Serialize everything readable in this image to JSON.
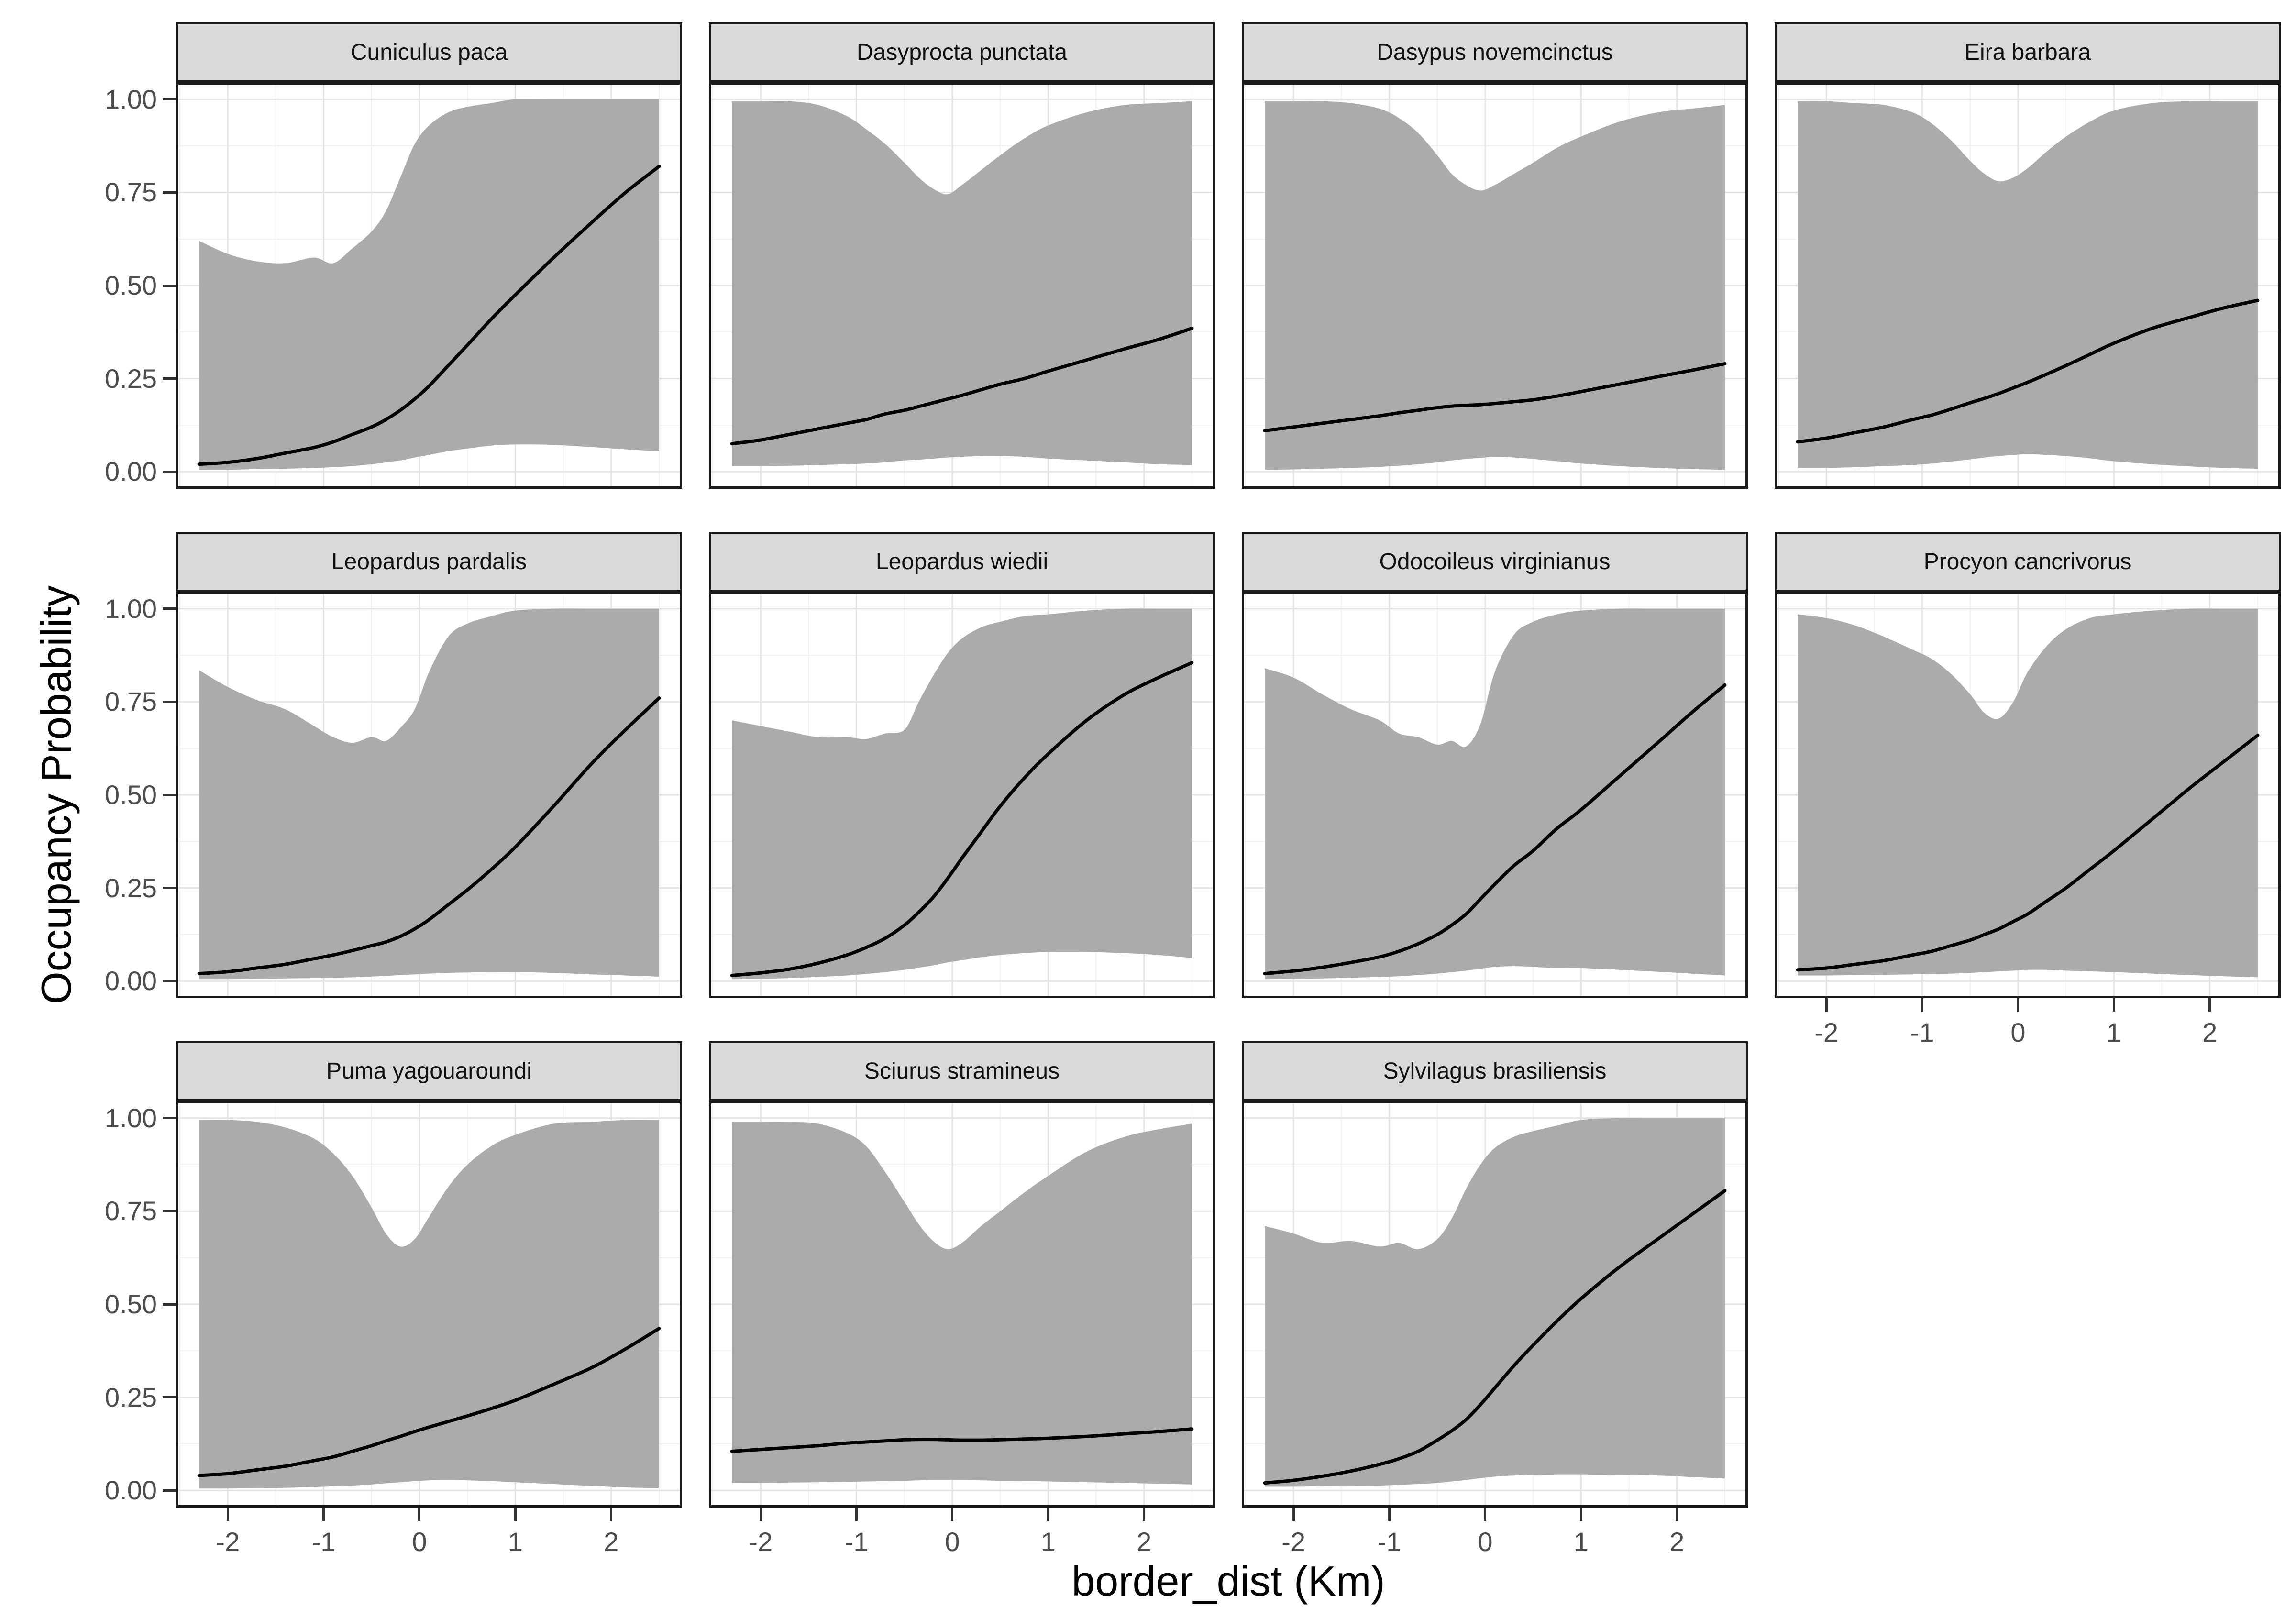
{
  "figure_type": "faceted ribbon + line plot (species occupancy curves)",
  "colors": {
    "ribbon": "#ABABAB",
    "mean_line": "#000000",
    "strip_fill": "#D9D9D9",
    "strip_border": "#1A1A1A",
    "panel_border": "#1A1A1A",
    "grid_major": "#E4E4E4",
    "grid_minor": "#F1F1F1",
    "tick_text": "#4D4D4D",
    "tick_mark": "#333333",
    "background": "#FFFFFF"
  },
  "chart_data": {
    "type": "area",
    "title": "",
    "xlabel": "border_dist (Km)",
    "ylabel": "Occupancy Probability",
    "legend": "none",
    "grid": "major and minor, light gray on white",
    "ncol": 4,
    "x_domain": [
      -2.54,
      2.74
    ],
    "y_domain": [
      -0.046,
      1.046
    ],
    "x_ticks": [
      -2,
      -1,
      0,
      1,
      2
    ],
    "x_tick_labels": [
      "-2",
      "-1",
      "0",
      "1",
      "2"
    ],
    "x_minor_ticks": [
      -2.5,
      -1.5,
      -0.5,
      0.5,
      1.5,
      2.5
    ],
    "y_ticks": [
      0,
      0.25,
      0.5,
      0.75,
      1
    ],
    "y_tick_labels": [
      "0.00",
      "0.25",
      "0.50",
      "0.75",
      "1.00"
    ],
    "y_minor_ticks": [
      0.125,
      0.375,
      0.625,
      0.875
    ],
    "x": [
      -2.3,
      -2,
      -1.7,
      -1.4,
      -1.1,
      -0.9,
      -0.7,
      -0.5,
      -0.35,
      -0.2,
      -0.05,
      0.1,
      0.3,
      0.5,
      0.75,
      1,
      1.4,
      1.8,
      2.15,
      2.5
    ],
    "facets": [
      {
        "title": "Cuniculus paca",
        "mean": [
          0.02,
          0.025,
          0.035,
          0.05,
          0.065,
          0.08,
          0.1,
          0.12,
          0.14,
          0.165,
          0.195,
          0.23,
          0.285,
          0.34,
          0.41,
          0.475,
          0.575,
          0.67,
          0.75,
          0.82
        ],
        "upper": [
          0.62,
          0.585,
          0.565,
          0.56,
          0.575,
          0.56,
          0.6,
          0.645,
          0.7,
          0.79,
          0.88,
          0.93,
          0.965,
          0.98,
          0.99,
          1,
          1,
          1,
          1,
          1
        ],
        "lower": [
          0.005,
          0.005,
          0.007,
          0.008,
          0.01,
          0.012,
          0.015,
          0.02,
          0.025,
          0.03,
          0.038,
          0.045,
          0.055,
          0.062,
          0.07,
          0.073,
          0.072,
          0.066,
          0.06,
          0.055
        ]
      },
      {
        "title": "Dasyprocta punctata",
        "mean": [
          0.075,
          0.085,
          0.1,
          0.115,
          0.13,
          0.14,
          0.155,
          0.165,
          0.175,
          0.185,
          0.195,
          0.205,
          0.22,
          0.235,
          0.25,
          0.27,
          0.3,
          0.33,
          0.355,
          0.385
        ],
        "upper": [
          0.995,
          0.995,
          0.995,
          0.985,
          0.955,
          0.92,
          0.88,
          0.83,
          0.79,
          0.76,
          0.745,
          0.77,
          0.81,
          0.85,
          0.895,
          0.93,
          0.965,
          0.985,
          0.99,
          0.995
        ],
        "lower": [
          0.015,
          0.015,
          0.016,
          0.018,
          0.02,
          0.022,
          0.025,
          0.03,
          0.032,
          0.035,
          0.038,
          0.04,
          0.042,
          0.042,
          0.04,
          0.035,
          0.03,
          0.025,
          0.02,
          0.018
        ]
      },
      {
        "title": "Dasypus novemcinctus",
        "mean": [
          0.11,
          0.12,
          0.13,
          0.14,
          0.15,
          0.158,
          0.165,
          0.172,
          0.176,
          0.178,
          0.18,
          0.183,
          0.188,
          0.193,
          0.203,
          0.215,
          0.235,
          0.255,
          0.272,
          0.29
        ],
        "upper": [
          0.995,
          0.995,
          0.995,
          0.99,
          0.975,
          0.95,
          0.91,
          0.85,
          0.8,
          0.77,
          0.755,
          0.77,
          0.8,
          0.83,
          0.87,
          0.9,
          0.94,
          0.965,
          0.975,
          0.985
        ],
        "lower": [
          0.005,
          0.006,
          0.008,
          0.01,
          0.013,
          0.016,
          0.02,
          0.025,
          0.03,
          0.034,
          0.037,
          0.04,
          0.038,
          0.034,
          0.028,
          0.022,
          0.015,
          0.01,
          0.007,
          0.005
        ]
      },
      {
        "title": "Eira barbara",
        "mean": [
          0.08,
          0.09,
          0.105,
          0.12,
          0.14,
          0.152,
          0.168,
          0.185,
          0.197,
          0.21,
          0.225,
          0.24,
          0.262,
          0.285,
          0.315,
          0.345,
          0.385,
          0.415,
          0.44,
          0.46
        ],
        "upper": [
          0.995,
          0.995,
          0.99,
          0.985,
          0.965,
          0.935,
          0.89,
          0.835,
          0.8,
          0.78,
          0.79,
          0.815,
          0.86,
          0.9,
          0.94,
          0.97,
          0.99,
          0.995,
          0.995,
          0.995
        ],
        "lower": [
          0.01,
          0.01,
          0.012,
          0.015,
          0.018,
          0.022,
          0.027,
          0.033,
          0.038,
          0.042,
          0.045,
          0.047,
          0.045,
          0.042,
          0.036,
          0.028,
          0.02,
          0.014,
          0.01,
          0.008
        ]
      },
      {
        "title": "Leopardus pardalis",
        "mean": [
          0.02,
          0.025,
          0.035,
          0.045,
          0.06,
          0.07,
          0.082,
          0.095,
          0.105,
          0.12,
          0.14,
          0.165,
          0.205,
          0.245,
          0.3,
          0.36,
          0.47,
          0.585,
          0.675,
          0.76
        ],
        "upper": [
          0.835,
          0.79,
          0.755,
          0.73,
          0.685,
          0.655,
          0.64,
          0.655,
          0.645,
          0.68,
          0.73,
          0.83,
          0.925,
          0.96,
          0.98,
          0.995,
          1,
          1,
          1,
          1
        ],
        "lower": [
          0.005,
          0.005,
          0.006,
          0.007,
          0.008,
          0.009,
          0.01,
          0.012,
          0.014,
          0.016,
          0.018,
          0.02,
          0.022,
          0.023,
          0.024,
          0.024,
          0.022,
          0.018,
          0.015,
          0.012
        ]
      },
      {
        "title": "Leopardus wiedii",
        "mean": [
          0.015,
          0.022,
          0.032,
          0.048,
          0.07,
          0.09,
          0.115,
          0.15,
          0.185,
          0.225,
          0.275,
          0.33,
          0.4,
          0.47,
          0.545,
          0.61,
          0.7,
          0.77,
          0.815,
          0.855
        ],
        "upper": [
          0.7,
          0.685,
          0.67,
          0.655,
          0.655,
          0.65,
          0.665,
          0.675,
          0.75,
          0.82,
          0.88,
          0.92,
          0.95,
          0.965,
          0.98,
          0.985,
          0.995,
          1,
          1,
          1
        ],
        "lower": [
          0.005,
          0.006,
          0.008,
          0.011,
          0.015,
          0.019,
          0.024,
          0.03,
          0.036,
          0.042,
          0.05,
          0.056,
          0.064,
          0.07,
          0.075,
          0.078,
          0.078,
          0.075,
          0.07,
          0.062
        ]
      },
      {
        "title": "Odocoileus virginianus",
        "mean": [
          0.02,
          0.027,
          0.037,
          0.05,
          0.065,
          0.08,
          0.1,
          0.125,
          0.15,
          0.18,
          0.22,
          0.26,
          0.31,
          0.35,
          0.41,
          0.46,
          0.55,
          0.64,
          0.72,
          0.795
        ],
        "upper": [
          0.84,
          0.815,
          0.77,
          0.73,
          0.7,
          0.665,
          0.655,
          0.635,
          0.645,
          0.63,
          0.69,
          0.83,
          0.93,
          0.965,
          0.985,
          0.995,
          1,
          1,
          1,
          1
        ],
        "lower": [
          0.005,
          0.006,
          0.007,
          0.009,
          0.011,
          0.013,
          0.016,
          0.02,
          0.024,
          0.028,
          0.033,
          0.038,
          0.04,
          0.038,
          0.035,
          0.035,
          0.03,
          0.025,
          0.02,
          0.015
        ]
      },
      {
        "title": "Procyon cancrivorus",
        "mean": [
          0.03,
          0.035,
          0.045,
          0.055,
          0.07,
          0.08,
          0.095,
          0.11,
          0.125,
          0.14,
          0.16,
          0.18,
          0.215,
          0.25,
          0.3,
          0.35,
          0.435,
          0.52,
          0.59,
          0.66
        ],
        "upper": [
          0.985,
          0.975,
          0.955,
          0.925,
          0.89,
          0.865,
          0.825,
          0.77,
          0.72,
          0.705,
          0.75,
          0.83,
          0.9,
          0.945,
          0.975,
          0.985,
          0.995,
          1,
          1,
          1
        ],
        "lower": [
          0.015,
          0.015,
          0.016,
          0.017,
          0.018,
          0.019,
          0.02,
          0.022,
          0.024,
          0.026,
          0.028,
          0.03,
          0.03,
          0.028,
          0.026,
          0.024,
          0.02,
          0.016,
          0.013,
          0.01
        ]
      },
      {
        "title": "Puma yagouaroundi",
        "mean": [
          0.04,
          0.045,
          0.055,
          0.065,
          0.08,
          0.09,
          0.105,
          0.12,
          0.133,
          0.145,
          0.158,
          0.17,
          0.185,
          0.2,
          0.22,
          0.242,
          0.285,
          0.33,
          0.38,
          0.435
        ],
        "upper": [
          0.995,
          0.995,
          0.99,
          0.975,
          0.945,
          0.905,
          0.845,
          0.76,
          0.69,
          0.655,
          0.675,
          0.735,
          0.815,
          0.875,
          0.925,
          0.955,
          0.985,
          0.99,
          0.995,
          0.995
        ],
        "lower": [
          0.005,
          0.005,
          0.006,
          0.007,
          0.009,
          0.011,
          0.013,
          0.016,
          0.019,
          0.022,
          0.025,
          0.027,
          0.028,
          0.027,
          0.025,
          0.022,
          0.017,
          0.012,
          0.008,
          0.006
        ]
      },
      {
        "title": "Sciurus stramineus",
        "mean": [
          0.105,
          0.11,
          0.115,
          0.12,
          0.127,
          0.13,
          0.133,
          0.136,
          0.137,
          0.137,
          0.136,
          0.135,
          0.135,
          0.136,
          0.138,
          0.14,
          0.145,
          0.152,
          0.158,
          0.165
        ],
        "upper": [
          0.99,
          0.99,
          0.99,
          0.985,
          0.96,
          0.925,
          0.855,
          0.775,
          0.715,
          0.67,
          0.648,
          0.665,
          0.71,
          0.75,
          0.8,
          0.845,
          0.91,
          0.95,
          0.97,
          0.985
        ],
        "lower": [
          0.02,
          0.02,
          0.021,
          0.022,
          0.023,
          0.024,
          0.025,
          0.026,
          0.027,
          0.028,
          0.028,
          0.028,
          0.027,
          0.026,
          0.025,
          0.024,
          0.022,
          0.02,
          0.018,
          0.016
        ]
      },
      {
        "title": "Sylvilagus brasiliensis",
        "mean": [
          0.02,
          0.027,
          0.038,
          0.052,
          0.07,
          0.085,
          0.105,
          0.135,
          0.16,
          0.19,
          0.23,
          0.275,
          0.335,
          0.39,
          0.455,
          0.515,
          0.6,
          0.675,
          0.74,
          0.805
        ],
        "upper": [
          0.71,
          0.69,
          0.665,
          0.67,
          0.655,
          0.665,
          0.648,
          0.675,
          0.73,
          0.81,
          0.875,
          0.92,
          0.95,
          0.965,
          0.98,
          0.995,
          1,
          1,
          1,
          1
        ],
        "lower": [
          0.01,
          0.01,
          0.011,
          0.012,
          0.013,
          0.015,
          0.017,
          0.02,
          0.024,
          0.028,
          0.033,
          0.037,
          0.04,
          0.042,
          0.043,
          0.043,
          0.042,
          0.04,
          0.036,
          0.032
        ]
      }
    ]
  }
}
